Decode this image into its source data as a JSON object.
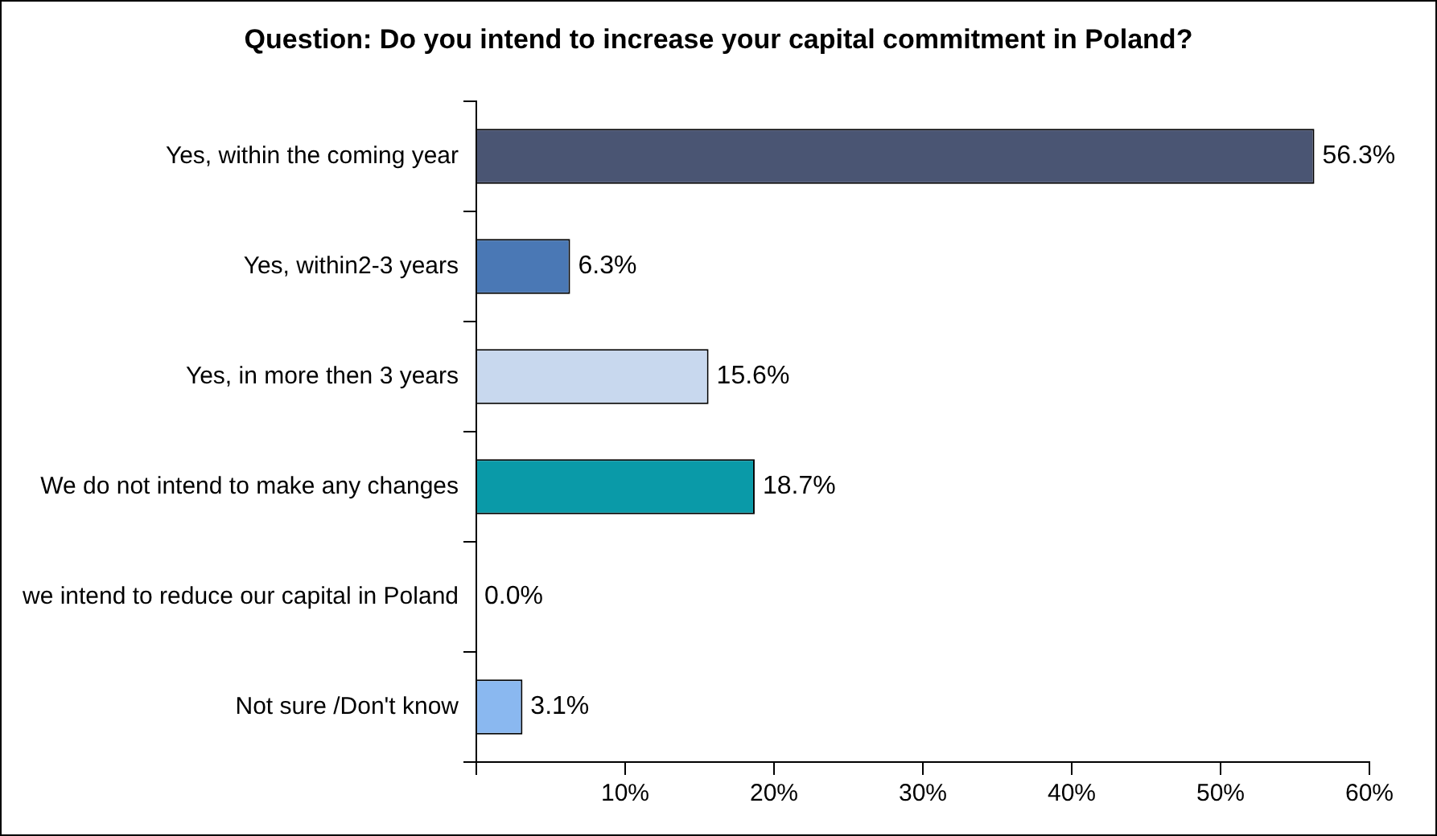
{
  "chart_data": {
    "type": "bar",
    "orientation": "horizontal",
    "title": "Question: Do you intend to increase your capital commitment in Poland?",
    "categories": [
      "Yes, within the coming year",
      "Yes, within2-3 years",
      "Yes, in more then 3 years",
      "We do not intend to make any changes",
      "we intend to reduce our capital in Poland",
      "Not sure /Don't know"
    ],
    "values": [
      56.3,
      6.3,
      15.6,
      18.7,
      0.0,
      3.1
    ],
    "colors": [
      "#4a5573",
      "#4a78b5",
      "#c8d8ee",
      "#0a9aa8",
      "#8ab8f0",
      "#8ab8f0"
    ],
    "value_labels": [
      "56.3%",
      "6.3%",
      "15.6%",
      "18.7%",
      "0.0%",
      "3.1%"
    ],
    "xlim": [
      0,
      60
    ],
    "xticks": [
      {
        "value": 0,
        "label": null
      },
      {
        "value": 10,
        "label": "10%"
      },
      {
        "value": 20,
        "label": "20%"
      },
      {
        "value": 30,
        "label": "30%"
      },
      {
        "value": 40,
        "label": "40%"
      },
      {
        "value": 50,
        "label": "50%"
      },
      {
        "value": 60,
        "label": "60%"
      }
    ],
    "grid": false,
    "legend": false
  }
}
